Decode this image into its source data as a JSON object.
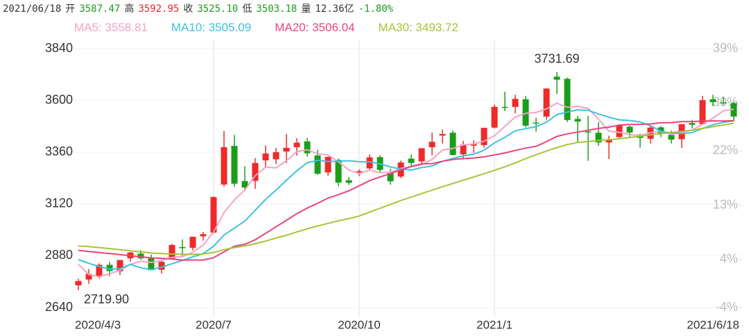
{
  "header": {
    "date": "2021/06/18",
    "items": [
      {
        "label": "开",
        "value": "3587.47",
        "color": "#1a9e1a"
      },
      {
        "label": "高",
        "value": "3592.95",
        "color": "#e8262a"
      },
      {
        "label": "收",
        "value": "3525.10",
        "color": "#1a9e1a"
      },
      {
        "label": "低",
        "value": "3503.18",
        "color": "#1a9e1a"
      },
      {
        "label": "量",
        "value": "12.36亿",
        "color": "#333333"
      }
    ],
    "change": "-1.80%",
    "change_color": "#1a9e1a"
  },
  "chart_data": {
    "type": "candlestick",
    "categories": [
      "2020/4/3",
      null,
      null,
      null,
      null,
      null,
      null,
      null,
      null,
      null,
      null,
      null,
      null,
      "2020/7",
      null,
      null,
      null,
      null,
      null,
      null,
      null,
      null,
      null,
      null,
      null,
      null,
      null,
      "2020/10",
      null,
      null,
      null,
      null,
      null,
      null,
      null,
      null,
      null,
      null,
      null,
      null,
      "2021/1",
      null,
      null,
      null,
      null,
      null,
      null,
      null,
      null,
      null,
      null,
      null,
      null,
      null,
      null,
      null,
      null,
      null,
      null,
      null,
      null,
      null,
      null,
      "2021/6/18"
    ],
    "open": [
      2743,
      2770,
      2784,
      2838,
      2808,
      2868,
      2890,
      2868,
      2815,
      2864,
      2920,
      2917,
      2970,
      2987,
      3210,
      3389,
      3226,
      3227,
      3322,
      3327,
      3363,
      3383,
      3410,
      3345,
      3266,
      3324,
      3230,
      3262,
      3285,
      3337,
      3263,
      3247,
      3330,
      3317,
      3383,
      3437,
      3450,
      3350,
      3390,
      3393,
      3474,
      3570,
      3570,
      3605,
      3497,
      3525,
      3710,
      3700,
      3514,
      3456,
      3450,
      3405,
      3430,
      3478,
      3442,
      3422,
      3475,
      3440,
      3420,
      3495,
      3490,
      3605,
      3591,
      3587.47
    ],
    "high": [
      2773,
      2818,
      2845,
      2852,
      2860,
      2898,
      2906,
      2885,
      2859,
      2935,
      2956,
      2968,
      2990,
      3155,
      3458,
      3440,
      3295,
      3333,
      3391,
      3380,
      3444,
      3425,
      3426,
      3370,
      3340,
      3330,
      3245,
      3280,
      3350,
      3347,
      3283,
      3321,
      3350,
      3379,
      3451,
      3465,
      3460,
      3412,
      3415,
      3474,
      3581,
      3640,
      3626,
      3620,
      3520,
      3656,
      3731.69,
      3705,
      3528,
      3528,
      3500,
      3436,
      3490,
      3483,
      3444,
      3482,
      3481,
      3460,
      3490,
      3510,
      3621,
      3626,
      3617,
      3592.95
    ],
    "low": [
      2719.9,
      2750,
      2774,
      2785,
      2790,
      2852,
      2862,
      2813,
      2798,
      2864,
      2880,
      2904,
      2950,
      2984,
      3200,
      3200,
      3180,
      3190,
      3288,
      3305,
      3310,
      3344,
      3340,
      3255,
      3250,
      3202,
      3208,
      3250,
      3280,
      3268,
      3209,
      3240,
      3290,
      3305,
      3345,
      3400,
      3345,
      3333,
      3357,
      3381,
      3470,
      3550,
      3540,
      3475,
      3455,
      3510,
      3630,
      3500,
      3406,
      3320,
      3390,
      3328,
      3420,
      3431,
      3381,
      3400,
      3430,
      3400,
      3380,
      3470,
      3485,
      3573,
      3580,
      3503.18
    ],
    "close": [
      2763,
      2796,
      2838,
      2809,
      2860,
      2895,
      2868,
      2813,
      2852,
      2930,
      2919,
      2968,
      2980,
      3152,
      3383,
      3214,
      3196,
      3310,
      3354,
      3360,
      3380,
      3404,
      3355,
      3260,
      3338,
      3219,
      3218,
      3272,
      3336,
      3278,
      3225,
      3312,
      3310,
      3378,
      3408,
      3444,
      3347,
      3395,
      3397,
      3473,
      3570,
      3566,
      3607,
      3483,
      3496,
      3655,
      3696,
      3509,
      3502,
      3453,
      3405,
      3418,
      3484,
      3451,
      3426,
      3474,
      3447,
      3418,
      3490,
      3487,
      3601,
      3592,
      3589,
      3525.1
    ],
    "up_color": "#ee2a2a",
    "down_color": "#1a9e1a",
    "series": [
      {
        "name": "MA5",
        "color": "#f4a3c4",
        "values": [
          2840,
          2793,
          2783,
          2796,
          2813,
          2840,
          2854,
          2849,
          2858,
          2872,
          2876,
          2896,
          2930,
          2990,
          3080,
          3139,
          3185,
          3251,
          3291,
          3287,
          3320,
          3362,
          3371,
          3352,
          3347,
          3315,
          3278,
          3261,
          3277,
          3265,
          3266,
          3285,
          3292,
          3301,
          3327,
          3370,
          3377,
          3394,
          3398,
          3411,
          3436,
          3480,
          3523,
          3540,
          3544,
          3561,
          3587,
          3568,
          3572,
          3563,
          3513,
          3457,
          3452,
          3442,
          3437,
          3451,
          3456,
          3443,
          3451,
          3463,
          3489,
          3518,
          3552,
          3558.81
        ]
      },
      {
        "name": "MA10",
        "color": "#3cc2e0",
        "values": [
          2862,
          2845,
          2830,
          2818,
          2820,
          2840,
          2824,
          2816,
          2827,
          2843,
          2858,
          2875,
          2890,
          2924,
          2976,
          3008,
          3041,
          3091,
          3141,
          3184,
          3230,
          3274,
          3311,
          3322,
          3317,
          3318,
          3320,
          3316,
          3315,
          3306,
          3291,
          3282,
          3277,
          3289,
          3296,
          3318,
          3331,
          3343,
          3350,
          3369,
          3403,
          3429,
          3459,
          3469,
          3478,
          3499,
          3534,
          3546,
          3556,
          3554,
          3537,
          3522,
          3510,
          3507,
          3500,
          3482,
          3457,
          3448,
          3447,
          3450,
          3470,
          3487,
          3498,
          3505.09
        ]
      },
      {
        "name": "MA20",
        "color": "#e8457a",
        "values": [
          2905,
          2900,
          2895,
          2890,
          2885,
          2880,
          2875,
          2870,
          2868,
          2865,
          2860,
          2860,
          2860,
          2871,
          2898,
          2924,
          2933,
          2954,
          2984,
          3014,
          3044,
          3075,
          3101,
          3123,
          3147,
          3163,
          3181,
          3204,
          3228,
          3245,
          3261,
          3278,
          3294,
          3306,
          3307,
          3318,
          3326,
          3330,
          3333,
          3338,
          3347,
          3356,
          3368,
          3379,
          3387,
          3409,
          3433,
          3445,
          3453,
          3462,
          3470,
          3476,
          3485,
          3488,
          3489,
          3491,
          3496,
          3497,
          3502,
          3502,
          3504,
          3505,
          3504,
          3506.04
        ]
      },
      {
        "name": "MA30",
        "color": "#a6c43a",
        "values": [
          2925,
          2922,
          2918,
          2913,
          2908,
          2903,
          2898,
          2893,
          2890,
          2888,
          2887,
          2886,
          2888,
          2895,
          2908,
          2918,
          2926,
          2936,
          2948,
          2962,
          2975,
          2990,
          3005,
          3018,
          3030,
          3042,
          3052,
          3064,
          3082,
          3100,
          3118,
          3136,
          3152,
          3168,
          3184,
          3200,
          3215,
          3230,
          3245,
          3260,
          3276,
          3292,
          3310,
          3330,
          3348,
          3365,
          3382,
          3395,
          3405,
          3410,
          3414,
          3418,
          3422,
          3428,
          3434,
          3440,
          3446,
          3451,
          3456,
          3462,
          3470,
          3478,
          3486,
          3493.72
        ]
      }
    ],
    "legend_separator": ": ",
    "max_label": "3731.69",
    "min_label": "2719.90",
    "ylim": [
      2640,
      3840
    ],
    "yticks": [
      2640,
      2880,
      3120,
      3360,
      3600,
      3840
    ],
    "y2lim": [
      -4,
      39
    ],
    "y2ticks": [
      {
        "value": -4,
        "label": "-4%"
      },
      {
        "value": 4,
        "label": "4%"
      },
      {
        "value": 13,
        "label": "13%"
      },
      {
        "value": 22,
        "label": "22%"
      },
      {
        "value": 30,
        "label": "30%"
      },
      {
        "value": 39,
        "label": "39%"
      }
    ],
    "grid": true
  }
}
